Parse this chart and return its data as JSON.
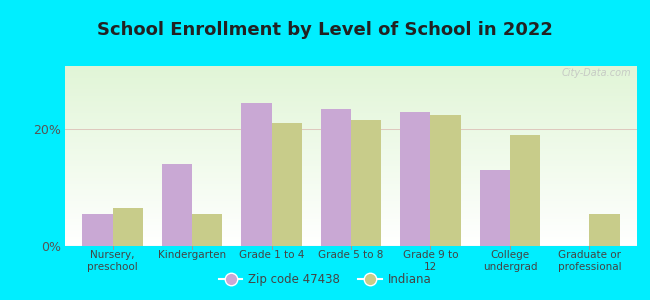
{
  "title": "School Enrollment by Level of School in 2022",
  "categories": [
    "Nursery,\npreschool",
    "Kindergarten",
    "Grade 1 to 4",
    "Grade 5 to 8",
    "Grade 9 to\n12",
    "College\nundergrad",
    "Graduate or\nprofessional"
  ],
  "zip_values": [
    5.5,
    14.0,
    24.5,
    23.5,
    23.0,
    13.0,
    0.0
  ],
  "indiana_values": [
    6.5,
    5.5,
    21.0,
    21.5,
    22.5,
    19.0,
    5.5
  ],
  "zip_color": "#c9a8d4",
  "indiana_color": "#c8cc8a",
  "background_outer": "#00eeff",
  "ylim": [
    0,
    28
  ],
  "yticks": [
    0,
    20
  ],
  "ytick_labels": [
    "0%",
    "20%"
  ],
  "bar_width": 0.38,
  "legend_zip_label": "Zip code 47438",
  "legend_indiana_label": "Indiana",
  "title_fontsize": 13,
  "watermark_text": "City-Data.com"
}
